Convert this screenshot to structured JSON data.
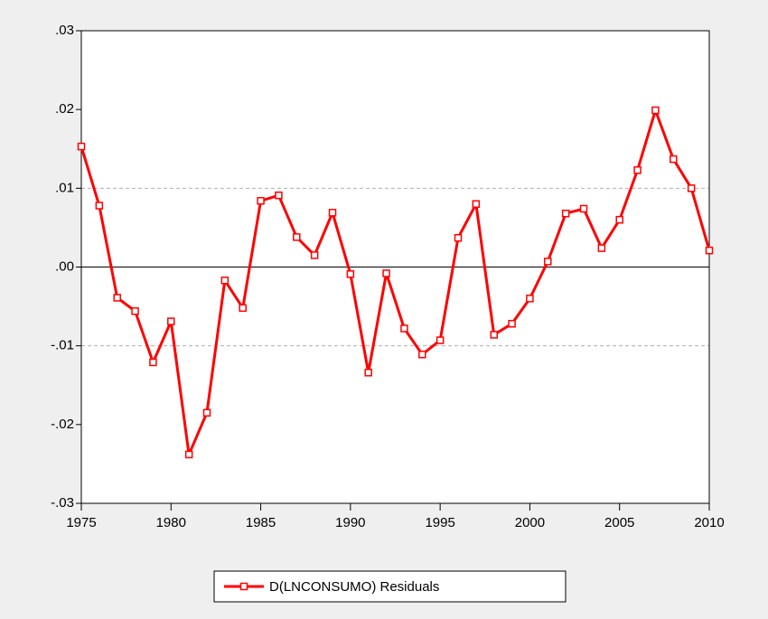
{
  "chart_data": {
    "type": "line",
    "x": [
      1975,
      1976,
      1977,
      1978,
      1979,
      1980,
      1981,
      1982,
      1983,
      1984,
      1985,
      1986,
      1987,
      1988,
      1989,
      1990,
      1991,
      1992,
      1993,
      1994,
      1995,
      1996,
      1997,
      1998,
      1999,
      2000,
      2001,
      2002,
      2003,
      2004,
      2005,
      2006,
      2007,
      2008,
      2009,
      2010
    ],
    "series": [
      {
        "name": "D(LNCONSUMO) Residuals",
        "color": "#ff0000",
        "values": [
          0.0153,
          0.0078,
          -0.0039,
          -0.0056,
          -0.0121,
          -0.0069,
          -0.0238,
          -0.0185,
          -0.0017,
          -0.0052,
          0.0084,
          0.0091,
          0.0038,
          0.0015,
          0.0069,
          -0.0009,
          -0.0134,
          -0.0008,
          -0.0078,
          -0.0111,
          -0.0093,
          0.0037,
          0.008,
          -0.0086,
          -0.0072,
          -0.004,
          0.0007,
          0.0068,
          0.0074,
          0.0024,
          0.006,
          0.0123,
          0.0199,
          0.0137,
          0.01,
          0.0021
        ]
      }
    ],
    "xlim": [
      1975,
      2010
    ],
    "xticks": [
      1975,
      1980,
      1985,
      1990,
      1995,
      2000,
      2005,
      2010
    ],
    "ylim": [
      -0.03,
      0.03
    ],
    "yticks": [
      {
        "value": -0.03,
        "label": "-.03"
      },
      {
        "value": -0.02,
        "label": "-.02"
      },
      {
        "value": -0.01,
        "label": "-.01"
      },
      {
        "value": 0,
        "label": ".00"
      },
      {
        "value": 0.01,
        "label": ".01"
      },
      {
        "value": 0.02,
        "label": ".02"
      },
      {
        "value": 0.03,
        "label": ".03"
      }
    ],
    "ygrid": [
      -0.01,
      0.01
    ],
    "zero_line": true,
    "legend": "bottom"
  }
}
